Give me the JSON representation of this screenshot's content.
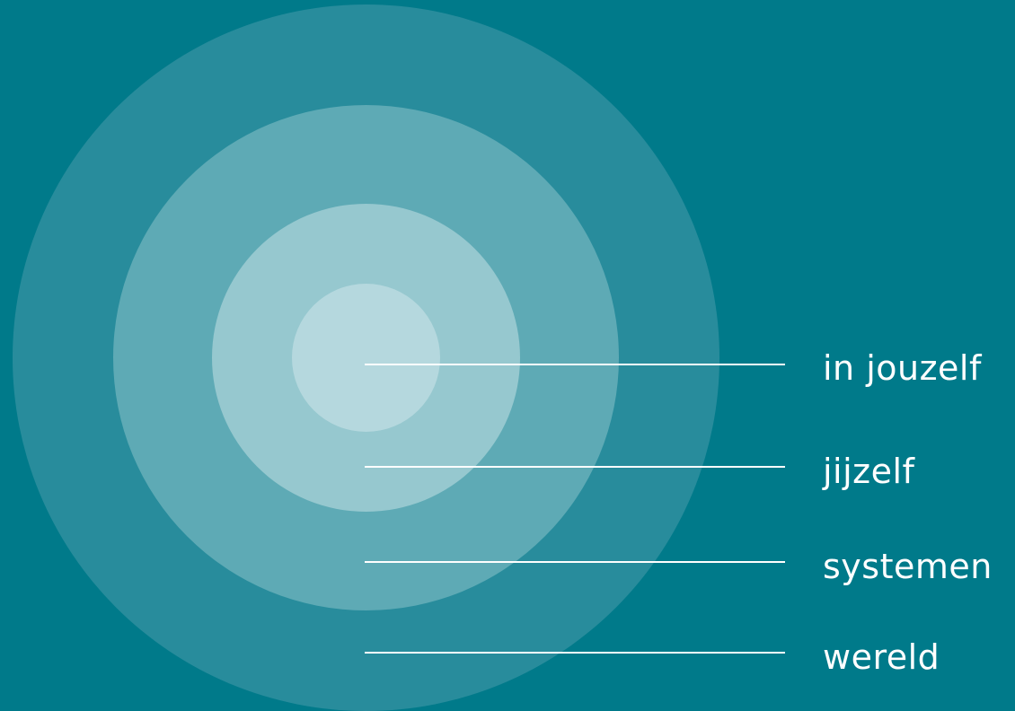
{
  "colors": {
    "background": "#007A8A",
    "ring_wereld": "#288C9C",
    "ring_systemen": "#5EAAB5",
    "ring_jijzelf": "#96C8CF",
    "ring_jouzelf": "#B5D8DE",
    "leader_lines": "#FFFFFF",
    "label_text": "#FFFFFF"
  },
  "labels": {
    "in_jouzelf": "in jouzelf",
    "jijzelf": "jijzelf",
    "systemen": "systemen",
    "wereld": "wereld"
  }
}
